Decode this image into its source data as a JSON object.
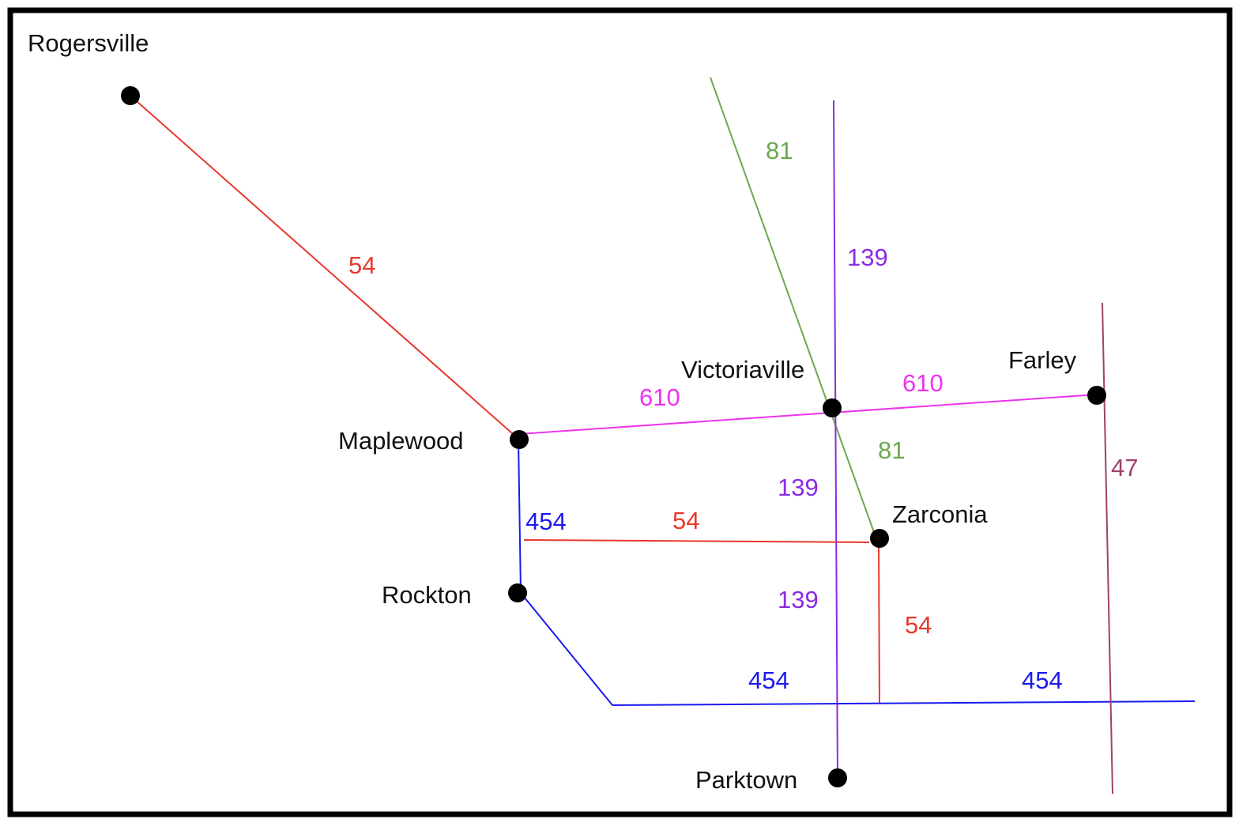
{
  "colors": {
    "route_54": "#e8382b",
    "route_81": "#6aa84f",
    "route_139": "#8a2be2",
    "route_454": "#1a1aee",
    "route_610": "#ee33ee",
    "route_47": "#a0406e",
    "town_dot": "#000000",
    "frame": "#000000"
  },
  "towns": {
    "rogersville": "Rogersville",
    "maplewood": "Maplewood",
    "victoriaville": "Victoriaville",
    "farley": "Farley",
    "zarconia": "Zarconia",
    "rockton": "Rockton",
    "parktown": "Parktown"
  },
  "routes": {
    "r54": "54",
    "r81": "81",
    "r139": "139",
    "r454": "454",
    "r610": "610",
    "r47": "47"
  }
}
